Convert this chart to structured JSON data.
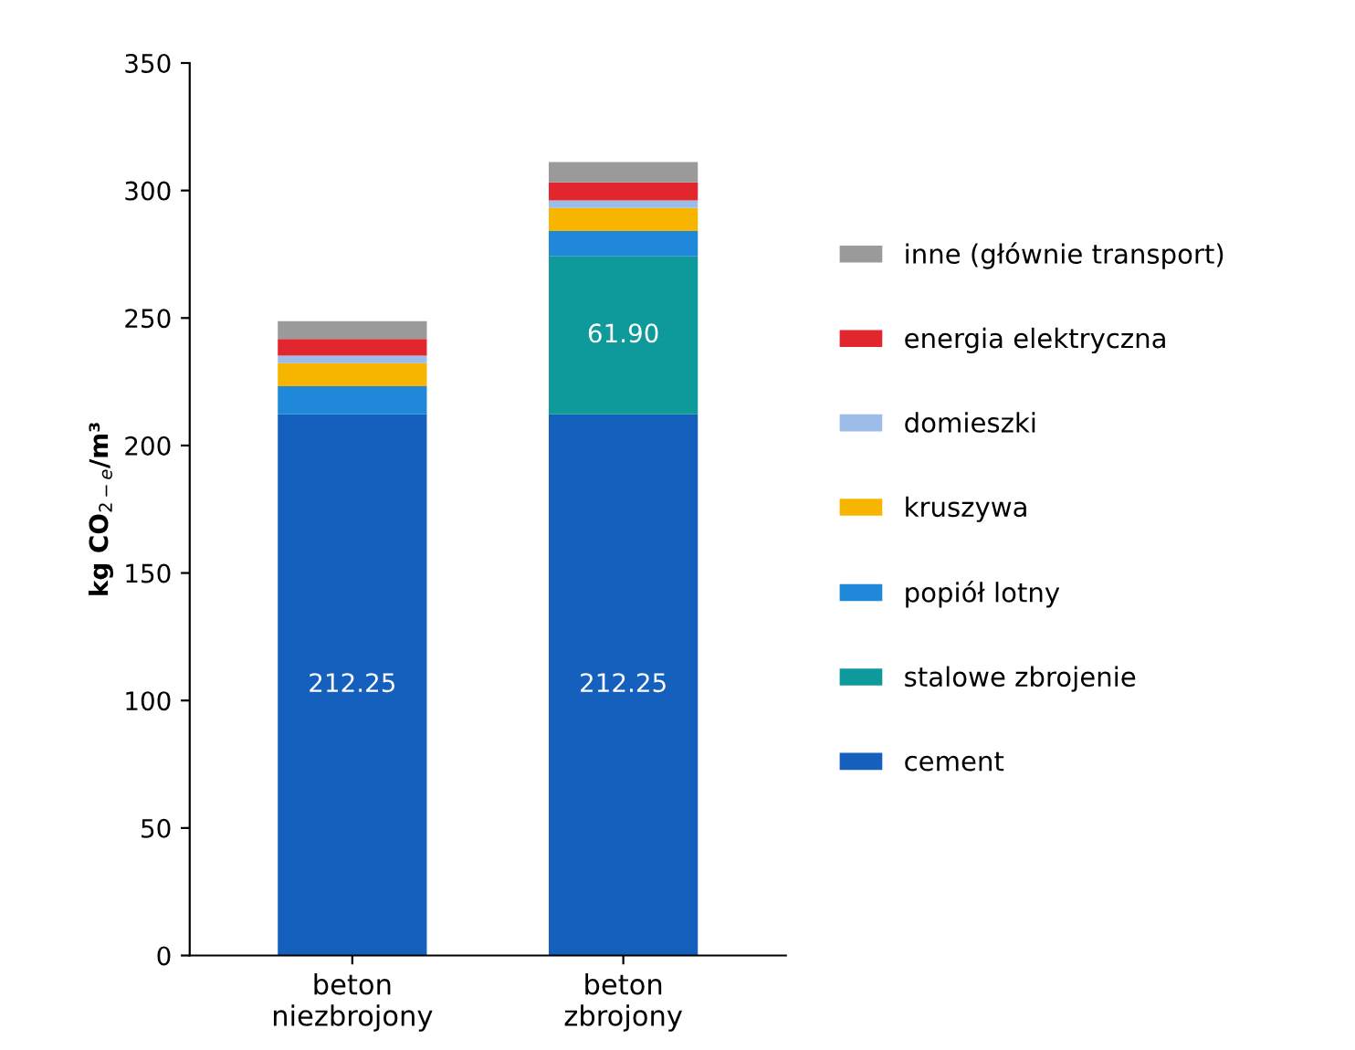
{
  "chart_data": {
    "type": "bar",
    "stacked": true,
    "ylabel": "kg CO$_{2−e}$/m³",
    "categories": [
      "beton\nniezbrojony",
      "beton\nzbrojony"
    ],
    "ylim": [
      0,
      350
    ],
    "yticks": [
      0,
      50,
      100,
      150,
      200,
      250,
      300,
      350
    ],
    "grid": false,
    "legend": "right",
    "series": [
      {
        "name": "cement",
        "color": "#1560bd",
        "values": [
          212.25,
          212.25
        ],
        "value_labels": [
          "212.25",
          "212.25"
        ]
      },
      {
        "name": "stalowe zbrojenie",
        "color": "#0e9a9a",
        "values": [
          0,
          61.9
        ],
        "value_labels": [
          null,
          "61.90"
        ]
      },
      {
        "name": "popiół lotny",
        "color": "#1f88d8",
        "values": [
          11,
          10
        ]
      },
      {
        "name": "kruszywa",
        "color": "#f7b500",
        "values": [
          9,
          9
        ]
      },
      {
        "name": "domieszki",
        "color": "#9dbde8",
        "values": [
          3,
          3
        ]
      },
      {
        "name": "energia elektryczna",
        "color": "#e2262e",
        "values": [
          6.5,
          7
        ]
      },
      {
        "name": "inne (głównie transport)",
        "color": "#9a9a9a",
        "values": [
          7,
          8
        ]
      }
    ]
  }
}
